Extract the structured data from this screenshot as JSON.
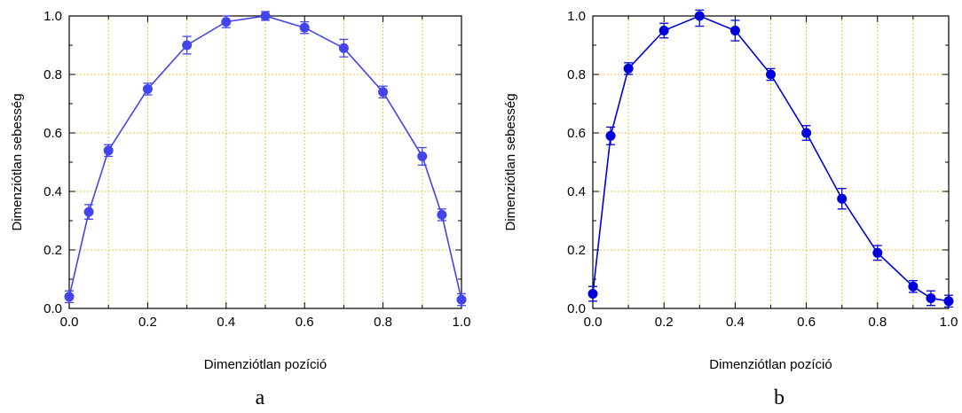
{
  "chart_data": [
    {
      "type": "line",
      "panel_label": "a",
      "xlabel": "Dimenziótlan pozíció",
      "ylabel": "Dimenziótlan sebesség",
      "xlim": [
        0,
        1
      ],
      "ylim": [
        0,
        1
      ],
      "xticks": [
        "0.0",
        "0.2",
        "0.4",
        "0.6",
        "0.8",
        "1.0"
      ],
      "yticks": [
        "0.0",
        "0.2",
        "0.4",
        "0.6",
        "0.8",
        "1.0"
      ],
      "grid": true,
      "color": "#4444ee",
      "grid_color": "#f0c040",
      "x": [
        0.0,
        0.05,
        0.1,
        0.2,
        0.3,
        0.4,
        0.5,
        0.6,
        0.7,
        0.8,
        0.9,
        0.95,
        1.0
      ],
      "y": [
        0.04,
        0.33,
        0.54,
        0.75,
        0.9,
        0.98,
        1.0,
        0.96,
        0.89,
        0.74,
        0.52,
        0.32,
        0.03
      ],
      "yerr": [
        0.02,
        0.025,
        0.02,
        0.02,
        0.03,
        0.02,
        0.015,
        0.02,
        0.03,
        0.02,
        0.03,
        0.02,
        0.02
      ]
    },
    {
      "type": "line",
      "panel_label": "b",
      "xlabel": "Dimenziótlan pozíció",
      "ylabel": "Dimenziótlan sebesség",
      "xlim": [
        0,
        1
      ],
      "ylim": [
        0,
        1
      ],
      "xticks": [
        "0.0",
        "0.2",
        "0.4",
        "0.6",
        "0.8",
        "1.0"
      ],
      "yticks": [
        "0.0",
        "0.2",
        "0.4",
        "0.6",
        "0.8",
        "1.0"
      ],
      "grid": true,
      "color": "#0000dd",
      "grid_color": "#f0c040",
      "x": [
        0.0,
        0.05,
        0.1,
        0.2,
        0.3,
        0.4,
        0.5,
        0.6,
        0.7,
        0.8,
        0.9,
        0.95,
        1.0
      ],
      "y": [
        0.05,
        0.59,
        0.82,
        0.95,
        1.0,
        0.95,
        0.8,
        0.6,
        0.375,
        0.19,
        0.075,
        0.035,
        0.025
      ],
      "yerr": [
        0.025,
        0.03,
        0.02,
        0.025,
        0.035,
        0.035,
        0.02,
        0.025,
        0.035,
        0.025,
        0.02,
        0.025,
        0.02
      ]
    }
  ]
}
